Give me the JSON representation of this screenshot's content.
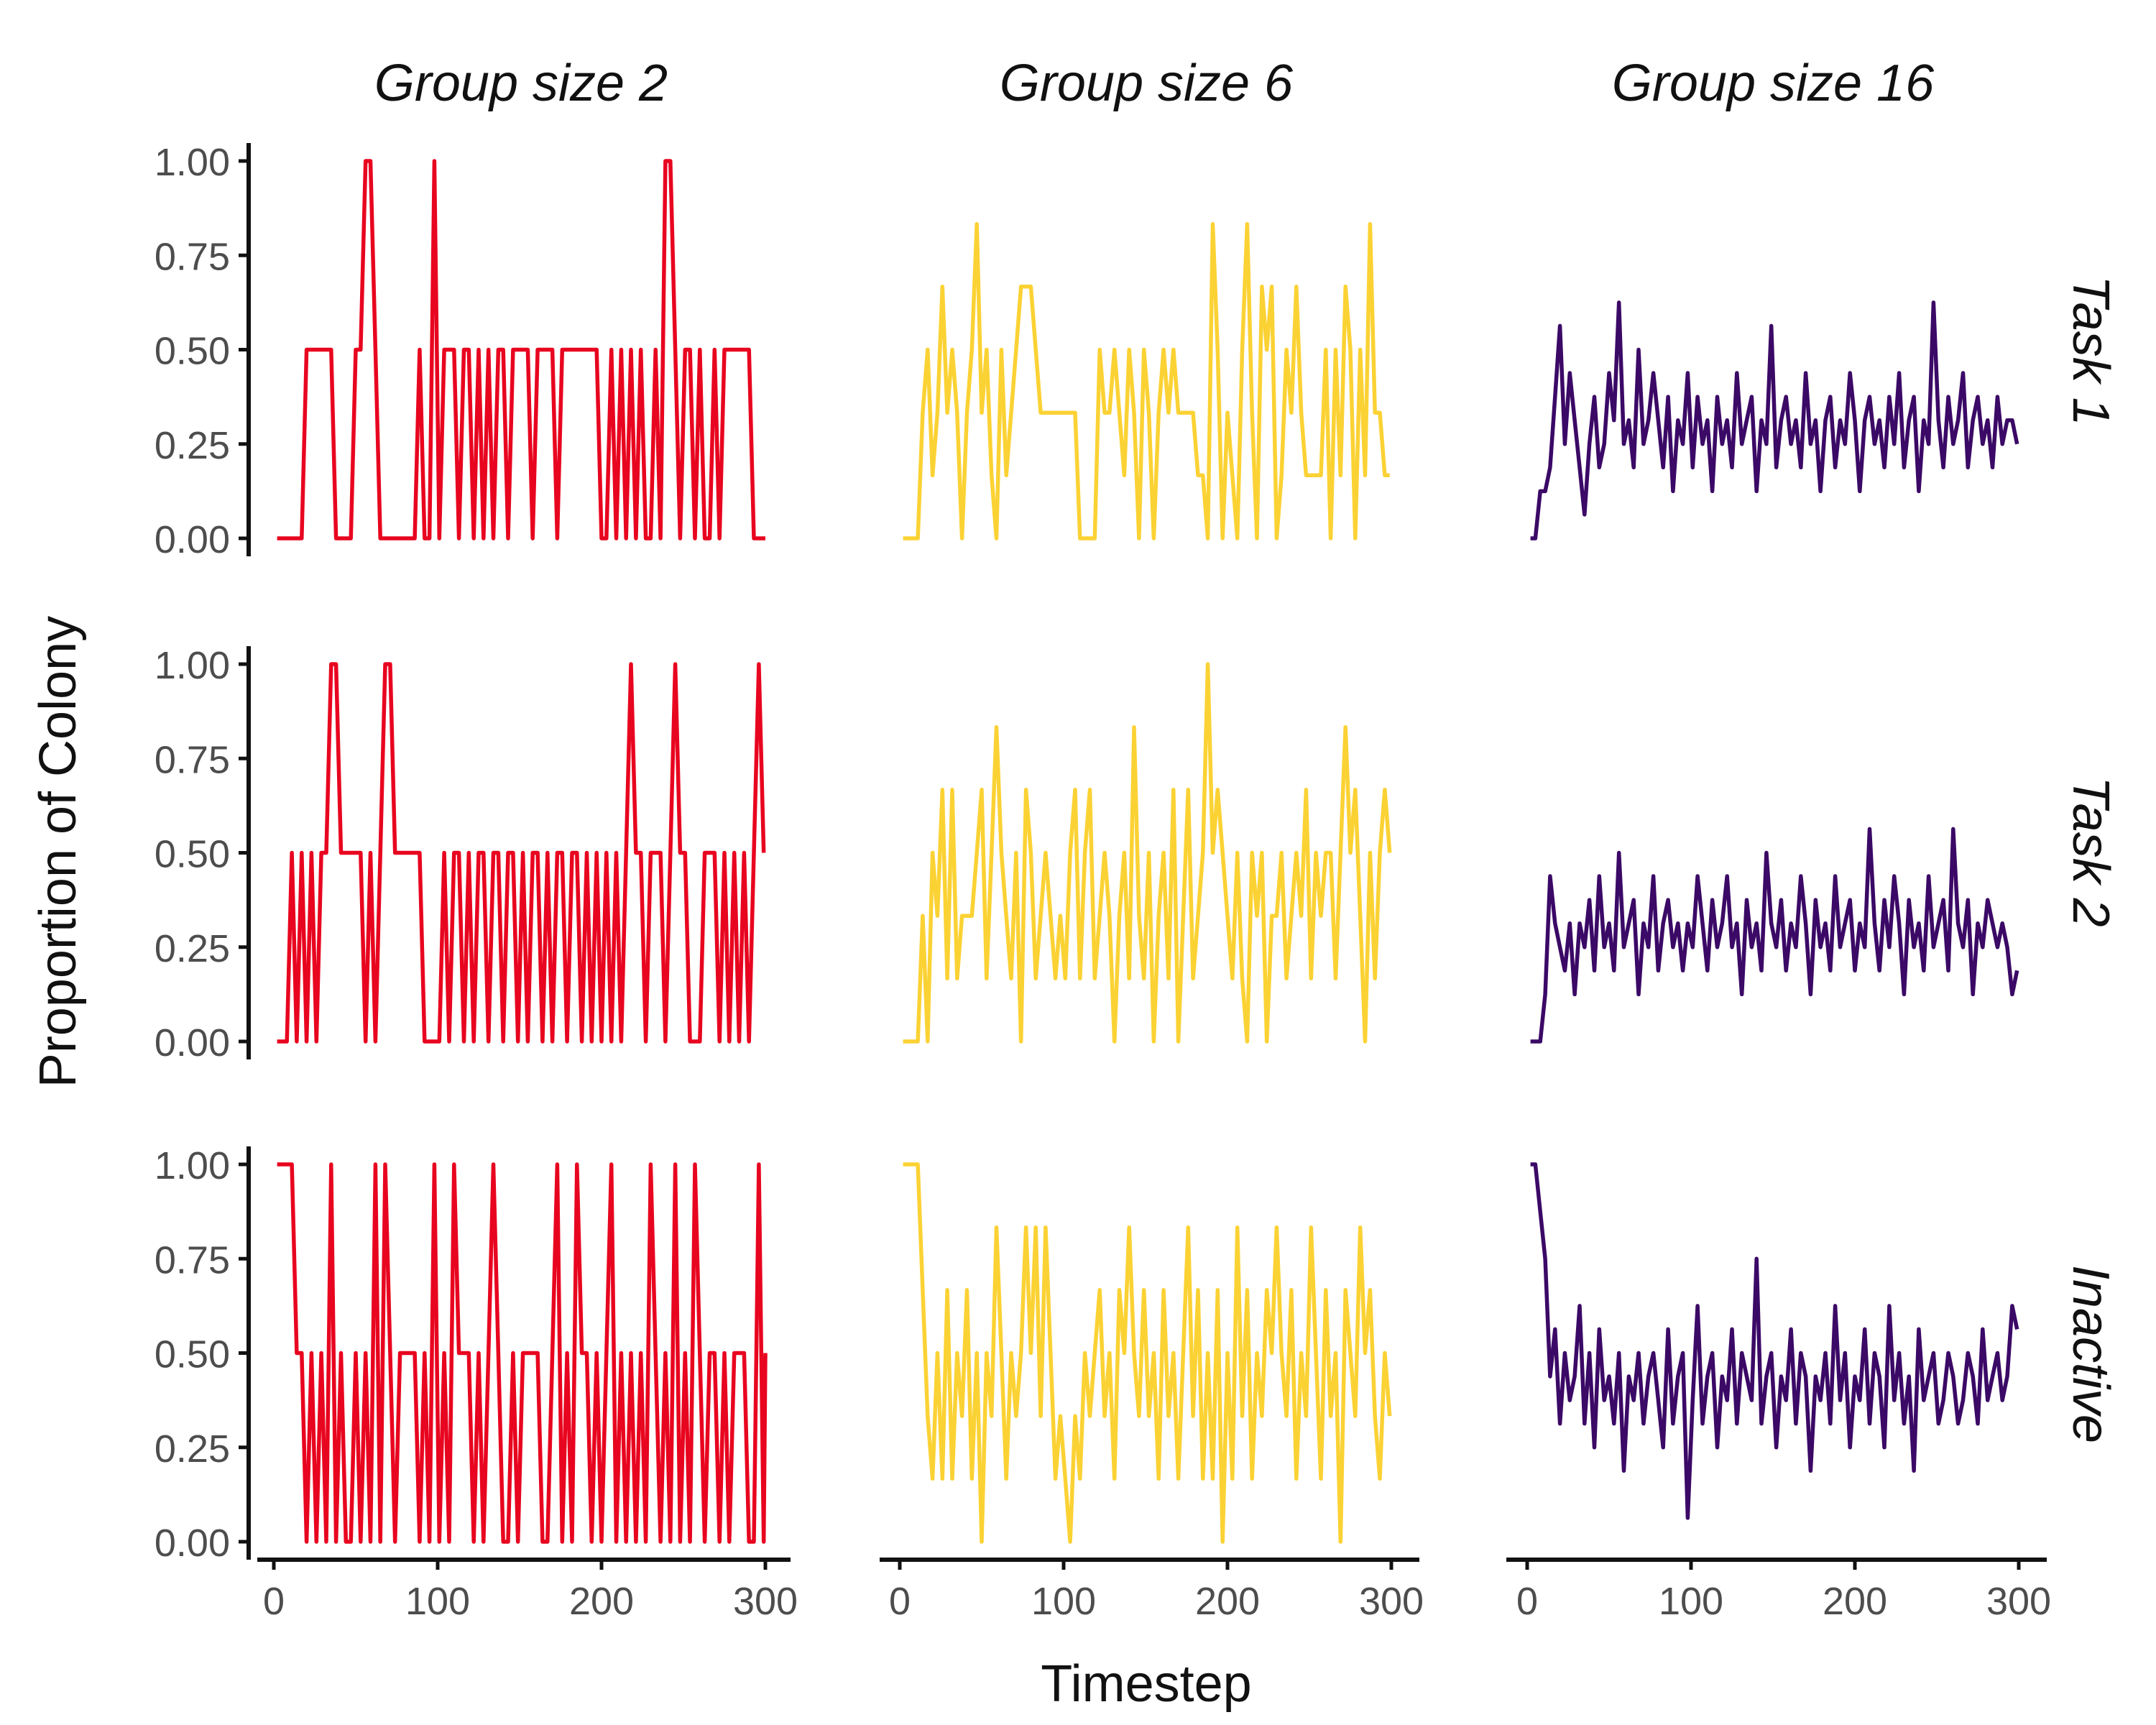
{
  "chart_data": {
    "type": "line",
    "facets": {
      "columns": [
        "Group size 2",
        "Group size 6",
        "Group size 16"
      ],
      "rows": [
        "Task 1",
        "Task 2",
        "Inactive"
      ]
    },
    "xlabel": "Timestep",
    "ylabel": "Proportion of Colony",
    "xlim": [
      0,
      300
    ],
    "ylim": [
      0,
      1
    ],
    "x_ticks": [
      0,
      100,
      200,
      300
    ],
    "y_ticks": [
      0.0,
      0.25,
      0.5,
      0.75,
      1.0
    ],
    "x_tick_labels": [
      "0",
      "100",
      "200",
      "300"
    ],
    "y_tick_labels": [
      "0.00",
      "0.25",
      "0.50",
      "0.75",
      "1.00"
    ],
    "colors": {
      "Group size 2": "#e8051f",
      "Group size 6": "#fbd234",
      "Group size 16": "#3b0966"
    },
    "x_step": 3,
    "series": [
      {
        "column": "Group size 2",
        "row": "Task 1",
        "x_start": 2,
        "values": [
          0,
          0,
          0,
          0,
          0,
          0,
          0.5,
          0.5,
          0.5,
          0.5,
          0.5,
          0.5,
          0,
          0,
          0,
          0,
          0.5,
          0.5,
          1,
          1,
          0.5,
          0,
          0,
          0,
          0,
          0,
          0,
          0,
          0,
          0.5,
          0,
          0,
          1,
          0,
          0.5,
          0.5,
          0.5,
          0,
          0.5,
          0.5,
          0,
          0.5,
          0,
          0.5,
          0,
          0.5,
          0.5,
          0,
          0.5,
          0.5,
          0.5,
          0.5,
          0,
          0.5,
          0.5,
          0.5,
          0.5,
          0,
          0.5,
          0.5,
          0.5,
          0.5,
          0.5,
          0.5,
          0.5,
          0.5,
          0,
          0,
          0.5,
          0,
          0.5,
          0,
          0.5,
          0,
          0.5,
          0,
          0,
          0.5,
          0,
          1,
          1,
          0.5,
          0,
          0.5,
          0.5,
          0,
          0.5,
          0,
          0,
          0.5,
          0,
          0.5,
          0.5,
          0.5,
          0.5,
          0.5,
          0.5,
          0,
          0,
          0,
          0
        ]
      },
      {
        "column": "Group size 2",
        "row": "Task 2",
        "x_start": 2,
        "values": [
          0,
          0,
          0,
          0.5,
          0,
          0.5,
          0,
          0.5,
          0,
          0.5,
          0.5,
          1,
          1,
          0.5,
          0.5,
          0.5,
          0.5,
          0.5,
          0,
          0.5,
          0,
          0.5,
          1,
          1,
          0.5,
          0.5,
          0.5,
          0.5,
          0.5,
          0.5,
          0,
          0,
          0,
          0,
          0.5,
          0,
          0.5,
          0.5,
          0,
          0.5,
          0,
          0.5,
          0.5,
          0,
          0.5,
          0.5,
          0,
          0.5,
          0.5,
          0,
          0.5,
          0,
          0.5,
          0.5,
          0,
          0.5,
          0,
          0.5,
          0.5,
          0,
          0.5,
          0.5,
          0,
          0.5,
          0,
          0.5,
          0,
          0.5,
          0,
          0.5,
          0,
          0.5,
          1,
          0.5,
          0.5,
          0,
          0.5,
          0.5,
          0.5,
          0,
          0.5,
          1,
          0.5,
          0.5,
          0,
          0,
          0,
          0.5,
          0.5,
          0.5,
          0,
          0.5,
          0,
          0.5,
          0,
          0.5,
          0,
          0.5,
          1,
          0.5
        ]
      },
      {
        "column": "Group size 2",
        "row": "Inactive",
        "x_start": 2,
        "values": [
          1,
          1,
          1,
          1,
          0.5,
          0.5,
          0,
          0.5,
          0,
          0.5,
          0,
          1,
          0,
          0.5,
          0,
          0,
          0.5,
          0,
          0.5,
          0,
          1,
          0,
          1,
          0.5,
          0,
          0.5,
          0.5,
          0.5,
          0.5,
          0,
          0.5,
          0,
          1,
          0,
          0.5,
          0,
          1,
          0.5,
          0.5,
          0.5,
          0,
          0.5,
          0,
          0.5,
          1,
          0.5,
          0,
          0,
          0.5,
          0,
          0.5,
          0.5,
          0.5,
          0.5,
          0,
          0,
          0.5,
          1,
          0,
          0.5,
          0,
          1,
          0.5,
          0.5,
          0,
          0.5,
          0,
          0.5,
          1,
          0,
          0.5,
          0,
          0.5,
          0,
          0.5,
          0,
          1,
          0.5,
          0,
          0.5,
          0,
          1,
          0,
          0.5,
          0,
          1,
          0.5,
          0,
          0.5,
          0.5,
          0,
          0.5,
          0,
          0.5,
          0.5,
          0.5,
          0,
          0,
          1,
          0,
          0.5
        ]
      },
      {
        "column": "Group size 6",
        "row": "Task 1",
        "x_start": 2,
        "values": [
          0,
          0,
          0,
          0,
          0.333,
          0.5,
          0.167,
          0.333,
          0.667,
          0.333,
          0.5,
          0.333,
          0,
          0.333,
          0.5,
          0.833,
          0.333,
          0.5,
          0.167,
          0,
          0.5,
          0.167,
          0.333,
          0.5,
          0.667,
          0.667,
          0.667,
          0.5,
          0.333,
          0.333,
          0.333,
          0.333,
          0.333,
          0.333,
          0.333,
          0.333,
          0,
          0,
          0,
          0,
          0.5,
          0.333,
          0.333,
          0.5,
          0.333,
          0.167,
          0.5,
          0.333,
          0,
          0.5,
          0.333,
          0,
          0.333,
          0.5,
          0.333,
          0.5,
          0.333,
          0.333,
          0.333,
          0.333,
          0.167,
          0.167,
          0,
          0.833,
          0.5,
          0,
          0.333,
          0.167,
          0,
          0.5,
          0.833,
          0.333,
          0,
          0.667,
          0.5,
          0.667,
          0,
          0.167,
          0.5,
          0.333,
          0.667,
          0.333,
          0.167,
          0.167,
          0.167,
          0.167,
          0.5,
          0,
          0.5,
          0.167,
          0.667,
          0.5,
          0,
          0.5,
          0.167,
          0.833,
          0.333,
          0.333,
          0.167,
          0.167
        ]
      },
      {
        "column": "Group size 6",
        "row": "Task 2",
        "x_start": 2,
        "values": [
          0,
          0,
          0,
          0,
          0.333,
          0,
          0.5,
          0.333,
          0.667,
          0.167,
          0.667,
          0.167,
          0.333,
          0.333,
          0.333,
          0.5,
          0.667,
          0.167,
          0.5,
          0.833,
          0.5,
          0.333,
          0.167,
          0.5,
          0,
          0.667,
          0.5,
          0.167,
          0.333,
          0.5,
          0.333,
          0.167,
          0.333,
          0.167,
          0.5,
          0.667,
          0.167,
          0.5,
          0.667,
          0.167,
          0.333,
          0.5,
          0.333,
          0,
          0.333,
          0.5,
          0.167,
          0.833,
          0.333,
          0.167,
          0.5,
          0,
          0.333,
          0.5,
          0.167,
          0.667,
          0,
          0.333,
          0.667,
          0.167,
          0.333,
          0.5,
          1,
          0.5,
          0.667,
          0.5,
          0.333,
          0.167,
          0.5,
          0.167,
          0,
          0.5,
          0.333,
          0.5,
          0,
          0.333,
          0.333,
          0.5,
          0.167,
          0.333,
          0.5,
          0.333,
          0.667,
          0.167,
          0.5,
          0.333,
          0.5,
          0.5,
          0.167,
          0.5,
          0.833,
          0.5,
          0.667,
          0.333,
          0,
          0.5,
          0.167,
          0.5,
          0.667,
          0.5
        ]
      },
      {
        "column": "Group size 6",
        "row": "Inactive",
        "x_start": 2,
        "values": [
          1,
          1,
          1,
          1,
          0.667,
          0.333,
          0.167,
          0.5,
          0.167,
          0.667,
          0.167,
          0.5,
          0.333,
          0.667,
          0.167,
          0.5,
          0,
          0.5,
          0.333,
          0.833,
          0.5,
          0.167,
          0.5,
          0.333,
          0.5,
          0.833,
          0.5,
          0.833,
          0.333,
          0.833,
          0.5,
          0.167,
          0.333,
          0.167,
          0,
          0.333,
          0.167,
          0.5,
          0.333,
          0.5,
          0.667,
          0.333,
          0.5,
          0.167,
          0.667,
          0.5,
          0.833,
          0.5,
          0.333,
          0.667,
          0.333,
          0.5,
          0.167,
          0.667,
          0.333,
          0.5,
          0.167,
          0.5,
          0.833,
          0.333,
          0.667,
          0.167,
          0.5,
          0.167,
          0.667,
          0,
          0.5,
          0.167,
          0.833,
          0.333,
          0.667,
          0.167,
          0.5,
          0.333,
          0.667,
          0.5,
          0.833,
          0.5,
          0.333,
          0.667,
          0.167,
          0.5,
          0.333,
          0.833,
          0.5,
          0.167,
          0.667,
          0.333,
          0.5,
          0,
          0.667,
          0.5,
          0.333,
          0.833,
          0.5,
          0.667,
          0.333,
          0.167,
          0.5,
          0.333
        ]
      },
      {
        "column": "Group size 16",
        "row": "Task 1",
        "x_start": 2,
        "values": [
          0,
          0,
          0.125,
          0.125,
          0.188,
          0.375,
          0.563,
          0.25,
          0.438,
          0.313,
          0.188,
          0.063,
          0.25,
          0.375,
          0.188,
          0.25,
          0.438,
          0.313,
          0.625,
          0.25,
          0.313,
          0.188,
          0.5,
          0.25,
          0.313,
          0.438,
          0.313,
          0.188,
          0.375,
          0.125,
          0.313,
          0.25,
          0.438,
          0.188,
          0.375,
          0.25,
          0.313,
          0.125,
          0.375,
          0.25,
          0.313,
          0.188,
          0.438,
          0.25,
          0.313,
          0.375,
          0.125,
          0.313,
          0.25,
          0.563,
          0.188,
          0.313,
          0.375,
          0.25,
          0.313,
          0.188,
          0.438,
          0.25,
          0.313,
          0.125,
          0.313,
          0.375,
          0.188,
          0.313,
          0.25,
          0.438,
          0.313,
          0.125,
          0.313,
          0.375,
          0.25,
          0.313,
          0.188,
          0.375,
          0.25,
          0.438,
          0.188,
          0.313,
          0.375,
          0.125,
          0.313,
          0.25,
          0.625,
          0.313,
          0.188,
          0.375,
          0.25,
          0.313,
          0.438,
          0.188,
          0.313,
          0.375,
          0.25,
          0.313,
          0.188,
          0.375,
          0.25,
          0.313,
          0.313,
          0.25
        ]
      },
      {
        "column": "Group size 16",
        "row": "Task 2",
        "x_start": 2,
        "values": [
          0,
          0,
          0,
          0.125,
          0.438,
          0.313,
          0.25,
          0.188,
          0.313,
          0.125,
          0.313,
          0.25,
          0.375,
          0.188,
          0.438,
          0.25,
          0.313,
          0.188,
          0.5,
          0.25,
          0.313,
          0.375,
          0.125,
          0.313,
          0.25,
          0.438,
          0.188,
          0.313,
          0.375,
          0.25,
          0.313,
          0.188,
          0.313,
          0.25,
          0.438,
          0.313,
          0.188,
          0.375,
          0.25,
          0.313,
          0.438,
          0.25,
          0.313,
          0.125,
          0.375,
          0.25,
          0.313,
          0.188,
          0.5,
          0.313,
          0.25,
          0.375,
          0.188,
          0.313,
          0.25,
          0.438,
          0.313,
          0.125,
          0.375,
          0.25,
          0.313,
          0.188,
          0.438,
          0.25,
          0.313,
          0.375,
          0.188,
          0.313,
          0.25,
          0.563,
          0.313,
          0.188,
          0.375,
          0.25,
          0.438,
          0.313,
          0.125,
          0.375,
          0.25,
          0.313,
          0.188,
          0.438,
          0.25,
          0.313,
          0.375,
          0.188,
          0.563,
          0.313,
          0.25,
          0.375,
          0.125,
          0.313,
          0.25,
          0.375,
          0.313,
          0.25,
          0.313,
          0.25,
          0.125,
          0.188
        ]
      },
      {
        "column": "Group size 16",
        "row": "Inactive",
        "x_start": 2,
        "values": [
          1,
          1,
          0.875,
          0.75,
          0.438,
          0.563,
          0.313,
          0.5,
          0.375,
          0.438,
          0.625,
          0.313,
          0.5,
          0.25,
          0.563,
          0.375,
          0.438,
          0.313,
          0.5,
          0.188,
          0.438,
          0.375,
          0.5,
          0.313,
          0.438,
          0.5,
          0.375,
          0.25,
          0.563,
          0.313,
          0.438,
          0.5,
          0.063,
          0.375,
          0.625,
          0.313,
          0.438,
          0.5,
          0.25,
          0.438,
          0.375,
          0.563,
          0.313,
          0.5,
          0.438,
          0.375,
          0.75,
          0.313,
          0.438,
          0.5,
          0.25,
          0.438,
          0.375,
          0.563,
          0.313,
          0.5,
          0.438,
          0.188,
          0.438,
          0.375,
          0.5,
          0.313,
          0.625,
          0.375,
          0.5,
          0.25,
          0.438,
          0.375,
          0.563,
          0.313,
          0.5,
          0.438,
          0.25,
          0.625,
          0.375,
          0.5,
          0.313,
          0.438,
          0.188,
          0.563,
          0.375,
          0.438,
          0.5,
          0.313,
          0.375,
          0.5,
          0.438,
          0.313,
          0.375,
          0.5,
          0.438,
          0.313,
          0.563,
          0.375,
          0.438,
          0.5,
          0.375,
          0.438,
          0.625,
          0.563
        ]
      }
    ]
  }
}
